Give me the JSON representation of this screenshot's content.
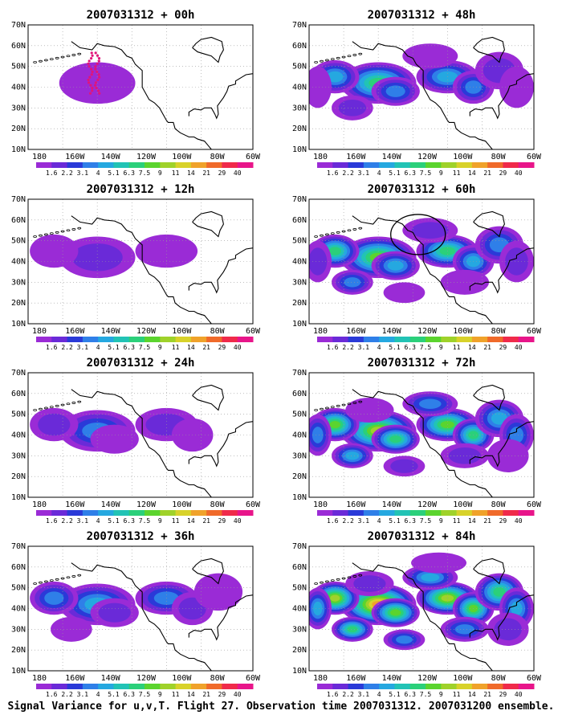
{
  "caption": "Signal Variance for u,v,T. Flight 27. Observation time 2007031312. 2007031200 ensemble.",
  "map": {
    "lon_labels": [
      "180",
      "160W",
      "140W",
      "120W",
      "100W",
      "80W",
      "60W"
    ],
    "lat_labels": [
      "10N",
      "20N",
      "30N",
      "40N",
      "50N",
      "60N",
      "70N"
    ],
    "lon_range": [
      -190,
      -60
    ],
    "lat_range": [
      10,
      70
    ]
  },
  "colorbar": {
    "labels": [
      "1.6",
      "2.2",
      "3.1",
      "4",
      "5.1",
      "6.3",
      "7.5",
      "9",
      "11",
      "14",
      "21",
      "29",
      "40"
    ],
    "colors": [
      "#9a2bd6",
      "#6a2ad8",
      "#2a3ad8",
      "#2f7fe8",
      "#25a8e0",
      "#22c3b5",
      "#2bd07a",
      "#5bd42e",
      "#9fd22a",
      "#d8d22a",
      "#f0a22a",
      "#f06a2a",
      "#f02a4a",
      "#e8158a"
    ]
  },
  "panels": [
    {
      "title": "2007031312 + 00h",
      "intensity": 1,
      "flight_track": true,
      "circle": false
    },
    {
      "title": "2007031312 + 48h",
      "intensity": 5,
      "flight_track": false,
      "circle": false
    },
    {
      "title": "2007031312 + 12h",
      "intensity": 2,
      "flight_track": false,
      "circle": false
    },
    {
      "title": "2007031312 + 60h",
      "intensity": 6,
      "flight_track": false,
      "circle": true
    },
    {
      "title": "2007031312 + 24h",
      "intensity": 3,
      "flight_track": false,
      "circle": false
    },
    {
      "title": "2007031312 + 72h",
      "intensity": 7,
      "flight_track": false,
      "circle": false
    },
    {
      "title": "2007031312 + 36h",
      "intensity": 4,
      "flight_track": false,
      "circle": false
    },
    {
      "title": "2007031312 + 84h",
      "intensity": 8,
      "flight_track": false,
      "circle": false
    }
  ]
}
